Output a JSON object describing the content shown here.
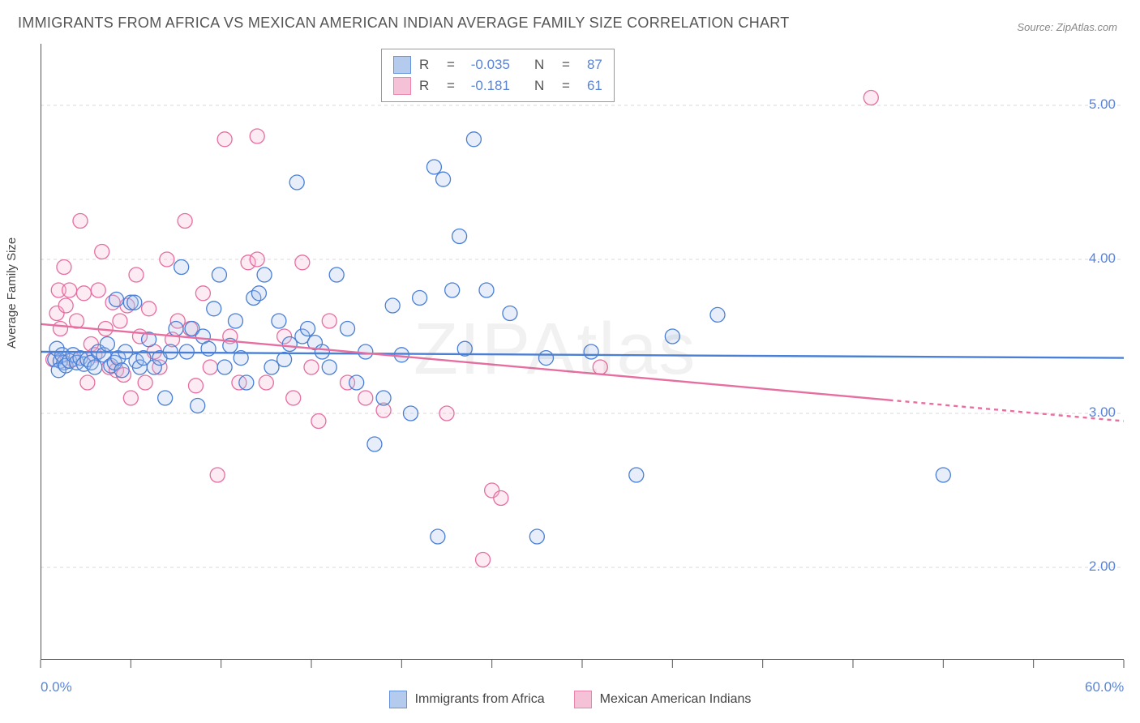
{
  "title": "IMMIGRANTS FROM AFRICA VS MEXICAN AMERICAN INDIAN AVERAGE FAMILY SIZE CORRELATION CHART",
  "source": "Source: ZipAtlas.com",
  "watermark": "ZIPAtlas",
  "y_axis_label": "Average Family Size",
  "chart": {
    "type": "scatter",
    "xlim": [
      0,
      60
    ],
    "ylim": [
      1.4,
      5.4
    ],
    "x_ticks": [
      0,
      60
    ],
    "x_tick_labels": [
      "0.0%",
      "60.0%"
    ],
    "x_minor_ticks": [
      5,
      10,
      15,
      20,
      25,
      30,
      35,
      40,
      45,
      50,
      55
    ],
    "y_ticks": [
      2.0,
      3.0,
      4.0,
      5.0
    ],
    "y_tick_labels": [
      "2.00",
      "3.00",
      "4.00",
      "5.00"
    ],
    "grid_color": "#d8d8d8",
    "grid_dash": "4,4",
    "background_color": "#ffffff",
    "point_radius": 9,
    "point_stroke_width": 1.3,
    "point_fill_opacity": 0.28,
    "trend_line_width": 2.4,
    "trend_dash_extrapolate": "5,5"
  },
  "series": [
    {
      "key": "africa",
      "label": "Immigrants from Africa",
      "color_stroke": "#4a7fd6",
      "color_fill": "#a8c3ea",
      "R": "-0.035",
      "N": "87",
      "trend": {
        "x0": 0,
        "y0": 3.4,
        "x1": 60,
        "y1": 3.36,
        "x_data_max": 60
      },
      "points": [
        [
          0.8,
          3.35
        ],
        [
          1.1,
          3.34
        ],
        [
          1.3,
          3.33
        ],
        [
          1.0,
          3.28
        ],
        [
          0.9,
          3.42
        ],
        [
          1.2,
          3.38
        ],
        [
          1.4,
          3.31
        ],
        [
          1.6,
          3.34
        ],
        [
          1.8,
          3.38
        ],
        [
          2.0,
          3.33
        ],
        [
          2.2,
          3.36
        ],
        [
          2.4,
          3.32
        ],
        [
          2.6,
          3.35
        ],
        [
          2.8,
          3.33
        ],
        [
          3.0,
          3.3
        ],
        [
          3.2,
          3.4
        ],
        [
          3.5,
          3.38
        ],
        [
          3.7,
          3.45
        ],
        [
          3.9,
          3.31
        ],
        [
          4.1,
          3.33
        ],
        [
          4.3,
          3.36
        ],
        [
          4.5,
          3.28
        ],
        [
          4.7,
          3.4
        ],
        [
          5.0,
          3.72
        ],
        [
          5.3,
          3.34
        ],
        [
          5.5,
          3.3
        ],
        [
          5.7,
          3.36
        ],
        [
          6.0,
          3.48
        ],
        [
          4.2,
          3.74
        ],
        [
          5.2,
          3.72
        ],
        [
          6.3,
          3.3
        ],
        [
          6.6,
          3.36
        ],
        [
          6.9,
          3.1
        ],
        [
          7.2,
          3.4
        ],
        [
          7.5,
          3.55
        ],
        [
          7.8,
          3.95
        ],
        [
          8.1,
          3.4
        ],
        [
          8.4,
          3.55
        ],
        [
          8.7,
          3.05
        ],
        [
          9.0,
          3.5
        ],
        [
          9.3,
          3.42
        ],
        [
          9.6,
          3.68
        ],
        [
          9.9,
          3.9
        ],
        [
          10.2,
          3.3
        ],
        [
          10.5,
          3.44
        ],
        [
          10.8,
          3.6
        ],
        [
          11.1,
          3.36
        ],
        [
          11.4,
          3.2
        ],
        [
          11.8,
          3.75
        ],
        [
          12.1,
          3.78
        ],
        [
          12.4,
          3.9
        ],
        [
          12.8,
          3.3
        ],
        [
          13.2,
          3.6
        ],
        [
          13.5,
          3.35
        ],
        [
          13.8,
          3.45
        ],
        [
          14.2,
          4.5
        ],
        [
          14.5,
          3.5
        ],
        [
          14.8,
          3.55
        ],
        [
          15.2,
          3.46
        ],
        [
          15.6,
          3.4
        ],
        [
          16.0,
          3.3
        ],
        [
          16.4,
          3.9
        ],
        [
          17.0,
          3.55
        ],
        [
          17.5,
          3.2
        ],
        [
          18.0,
          3.4
        ],
        [
          18.5,
          2.8
        ],
        [
          19.0,
          3.1
        ],
        [
          19.5,
          3.7
        ],
        [
          20.0,
          3.38
        ],
        [
          20.5,
          3.0
        ],
        [
          21.0,
          3.75
        ],
        [
          21.8,
          4.6
        ],
        [
          22.3,
          4.52
        ],
        [
          22.8,
          3.8
        ],
        [
          23.2,
          4.15
        ],
        [
          23.5,
          3.42
        ],
        [
          22.0,
          2.2
        ],
        [
          24.7,
          3.8
        ],
        [
          26.0,
          3.65
        ],
        [
          27.5,
          2.2
        ],
        [
          28.0,
          3.36
        ],
        [
          30.5,
          3.4
        ],
        [
          33.0,
          2.6
        ],
        [
          35.0,
          3.5
        ],
        [
          37.5,
          3.64
        ],
        [
          24.0,
          4.78
        ],
        [
          50.0,
          2.6
        ]
      ]
    },
    {
      "key": "mexican",
      "label": "Mexican American Indians",
      "color_stroke": "#e66ea0",
      "color_fill": "#f3b7cf",
      "R": "-0.181",
      "N": "61",
      "trend": {
        "x0": 0,
        "y0": 3.58,
        "x1": 60,
        "y1": 2.95,
        "x_data_max": 47
      },
      "points": [
        [
          0.7,
          3.35
        ],
        [
          0.9,
          3.65
        ],
        [
          1.0,
          3.8
        ],
        [
          1.1,
          3.55
        ],
        [
          1.3,
          3.95
        ],
        [
          1.4,
          3.7
        ],
        [
          1.6,
          3.8
        ],
        [
          1.8,
          3.35
        ],
        [
          2.0,
          3.6
        ],
        [
          2.2,
          4.25
        ],
        [
          2.4,
          3.78
        ],
        [
          2.6,
          3.2
        ],
        [
          2.8,
          3.45
        ],
        [
          3.0,
          3.38
        ],
        [
          3.2,
          3.8
        ],
        [
          3.4,
          4.05
        ],
        [
          3.6,
          3.55
        ],
        [
          3.8,
          3.3
        ],
        [
          4.0,
          3.72
        ],
        [
          4.2,
          3.28
        ],
        [
          4.4,
          3.6
        ],
        [
          4.6,
          3.25
        ],
        [
          4.8,
          3.7
        ],
        [
          5.0,
          3.1
        ],
        [
          5.3,
          3.9
        ],
        [
          5.5,
          3.5
        ],
        [
          5.8,
          3.2
        ],
        [
          6.0,
          3.68
        ],
        [
          6.3,
          3.4
        ],
        [
          6.6,
          3.3
        ],
        [
          7.0,
          4.0
        ],
        [
          7.3,
          3.48
        ],
        [
          7.6,
          3.6
        ],
        [
          8.0,
          4.25
        ],
        [
          8.3,
          3.55
        ],
        [
          8.6,
          3.18
        ],
        [
          9.0,
          3.78
        ],
        [
          9.4,
          3.3
        ],
        [
          9.8,
          2.6
        ],
        [
          10.2,
          4.78
        ],
        [
          10.5,
          3.5
        ],
        [
          11.0,
          3.2
        ],
        [
          11.5,
          3.98
        ],
        [
          12.0,
          4.0
        ],
        [
          12.5,
          3.2
        ],
        [
          12.0,
          4.8
        ],
        [
          13.5,
          3.5
        ],
        [
          14.0,
          3.1
        ],
        [
          14.5,
          3.98
        ],
        [
          15.0,
          3.3
        ],
        [
          15.4,
          2.95
        ],
        [
          16.0,
          3.6
        ],
        [
          17.0,
          3.2
        ],
        [
          18.0,
          3.1
        ],
        [
          19.0,
          3.02
        ],
        [
          22.5,
          3.0
        ],
        [
          25.0,
          2.5
        ],
        [
          25.5,
          2.45
        ],
        [
          24.5,
          2.05
        ],
        [
          31.0,
          3.3
        ],
        [
          46.0,
          5.05
        ]
      ]
    }
  ],
  "stats_box": {
    "r_label": "R",
    "n_label": "N",
    "eq": "="
  },
  "legend": {
    "bottom": true
  }
}
